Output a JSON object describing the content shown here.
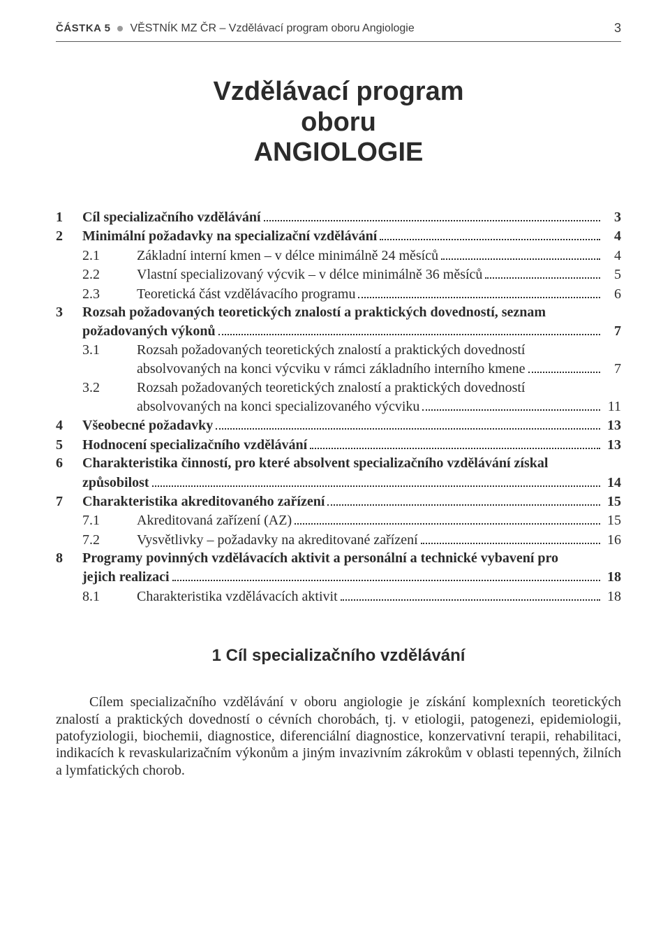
{
  "header": {
    "part": "ČÁSTKA 5",
    "rest": "VĚSTNÍK MZ ČR – Vzdělávací program oboru Angiologie",
    "page": "3"
  },
  "title": {
    "line1": "Vzdělávací program",
    "line2": "oboru",
    "line3": "ANGIOLOGIE"
  },
  "toc": [
    {
      "type": "top",
      "num": "1",
      "label": "Cíl specializačního vzdělávání",
      "page": "3",
      "bold": true
    },
    {
      "type": "top",
      "num": "2",
      "label": "Minimální požadavky na specializační vzdělávání",
      "page": "4",
      "bold": true
    },
    {
      "type": "sub",
      "num": "2.1",
      "label": "Základní interní kmen – v délce minimálně 24 měsíců",
      "page": "4"
    },
    {
      "type": "sub",
      "num": "2.2",
      "label": "Vlastní specializovaný výcvik – v délce minimálně 36 měsíců",
      "page": "5"
    },
    {
      "type": "sub",
      "num": "2.3",
      "label": "Teoretická část vzdělávacího programu",
      "page": "6"
    },
    {
      "type": "top-multiline",
      "num": "3",
      "lines": [
        "Rozsah požadovaných teoretických znalostí a praktických dovedností, seznam",
        "požadovaných výkonů"
      ],
      "page": "7",
      "bold": true
    },
    {
      "type": "sub-multiline",
      "num": "3.1",
      "lines": [
        "Rozsah požadovaných teoretických znalostí a praktických dovedností",
        "absolvovaných na konci výcviku v rámci základního interního kmene"
      ],
      "page": "7"
    },
    {
      "type": "sub-multiline",
      "num": "3.2",
      "lines": [
        "Rozsah požadovaných teoretických znalostí a praktických dovedností",
        "absolvovaných na konci specializovaného výcviku"
      ],
      "page": "11"
    },
    {
      "type": "top",
      "num": "4",
      "label": "Všeobecné požadavky",
      "page": "13",
      "bold": true
    },
    {
      "type": "top",
      "num": "5",
      "label": "Hodnocení specializačního vzdělávání",
      "page": "13",
      "bold": true
    },
    {
      "type": "top-multiline",
      "num": "6",
      "lines": [
        "Charakteristika činností, pro které absolvent specializačního vzdělávání získal",
        "způsobilost"
      ],
      "page": "14",
      "bold": true
    },
    {
      "type": "top",
      "num": "7",
      "label": "Charakteristika akreditovaného zařízení",
      "page": "15",
      "bold": true
    },
    {
      "type": "sub",
      "num": "7.1",
      "label": "Akreditovaná zařízení (AZ)",
      "page": "15"
    },
    {
      "type": "sub",
      "num": "7.2",
      "label": "Vysvětlivky – požadavky na akreditované zařízení",
      "page": "16"
    },
    {
      "type": "top-multiline",
      "num": "8",
      "lines": [
        "Programy povinných vzdělávacích aktivit a personální  a technické vybavení pro",
        "jejich realizaci"
      ],
      "page": "18",
      "bold": true
    },
    {
      "type": "sub",
      "num": "8.1",
      "label": "Charakteristika vzdělávacích aktivit",
      "page": "18"
    }
  ],
  "section1": {
    "heading": "1   Cíl specializačního vzdělávání",
    "body": "Cílem specializačního vzdělávání v oboru angiologie je získání komplexních teoretických znalostí a praktických dovedností o cévních chorobách, tj. v etiologii, patogenezi, epidemiologii, patofyziologii, biochemii, diagnostice, diferenciální diagnostice, konzervativní terapii, rehabilitaci, indikacích k revaskularizačním výkonům a jiným invazivním zákrokům v oblasti tepenných, žilních a lymfatických chorob."
  }
}
